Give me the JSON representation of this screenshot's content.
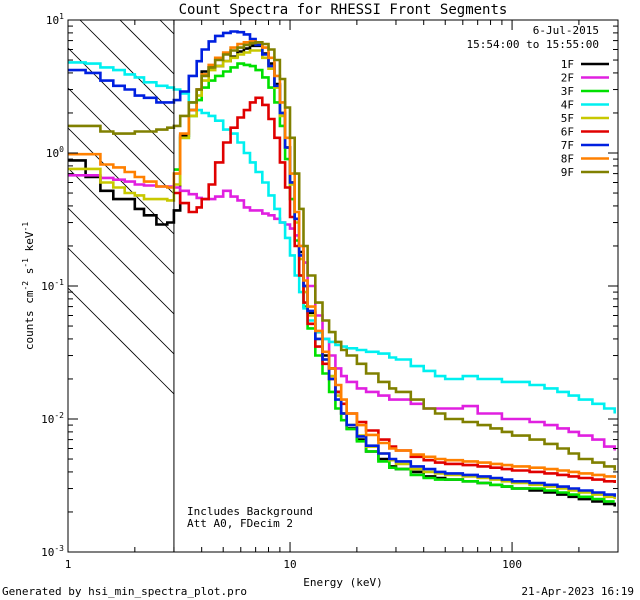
{
  "chart_data": {
    "type": "line",
    "step": true,
    "title": "Count Spectra for RHESSI Front Segments",
    "xlabel": "Energy (keV)",
    "ylabel_parts": {
      "main": "counts cm",
      "e1": "-2",
      "s": " s",
      "e2": "-1",
      "kev": " keV",
      "e3": "-1"
    },
    "xscale": "log",
    "yscale": "log",
    "xlim": [
      1,
      300
    ],
    "ylim": [
      0.001,
      10
    ],
    "x_tick_labels": [
      {
        "value": 1,
        "label": "1"
      },
      {
        "value": 10,
        "label": "10"
      },
      {
        "value": 100,
        "label": "100"
      }
    ],
    "y_tick_labels": [
      {
        "value": 10,
        "base": "10",
        "exp": "1"
      },
      {
        "value": 1,
        "base": "10",
        "exp": "0"
      },
      {
        "value": 0.1,
        "base": "10",
        "exp": "-1"
      },
      {
        "value": 0.01,
        "base": "10",
        "exp": "-2"
      },
      {
        "value": 0.001,
        "base": "10",
        "exp": "-3"
      }
    ],
    "date": "6-Jul-2015",
    "time_range": "15:54:00 to 15:55:00",
    "annotations": [
      "Includes Background",
      "Att A0, FDecim 2"
    ],
    "hatched_region_kev": [
      1,
      3
    ],
    "series": [
      {
        "name": "1F",
        "color": "#000000",
        "x": [
          1.0,
          1.2,
          1.4,
          1.6,
          1.8,
          2.0,
          2.2,
          2.5,
          2.8,
          3.0,
          3.2,
          3.5,
          3.8,
          4.0,
          4.3,
          4.6,
          5.0,
          5.4,
          5.8,
          6.2,
          6.6,
          7.0,
          7.5,
          8.0,
          8.5,
          9.0,
          9.5,
          10,
          10.5,
          11,
          11.5,
          12,
          13,
          14,
          15,
          16,
          17,
          18,
          20,
          22,
          25,
          28,
          30,
          35,
          40,
          45,
          50,
          60,
          70,
          80,
          90,
          100,
          120,
          140,
          160,
          180,
          200,
          230,
          260,
          290
        ],
        "y": [
          0.88,
          0.66,
          0.52,
          0.45,
          0.45,
          0.38,
          0.34,
          0.29,
          0.3,
          0.37,
          1.35,
          2.1,
          3.0,
          4.1,
          4.4,
          4.5,
          4.9,
          5.3,
          5.8,
          6.1,
          6.4,
          6.4,
          5.6,
          4.7,
          3.3,
          2.0,
          1.1,
          0.6,
          0.32,
          0.18,
          0.1,
          0.063,
          0.045,
          0.03,
          0.024,
          0.016,
          0.011,
          0.0085,
          0.007,
          0.0057,
          0.005,
          0.0044,
          0.0042,
          0.004,
          0.0037,
          0.0036,
          0.0035,
          0.0034,
          0.0033,
          0.0032,
          0.0031,
          0.003,
          0.0029,
          0.0028,
          0.0027,
          0.0026,
          0.0025,
          0.0024,
          0.0023,
          0.0022
        ]
      },
      {
        "name": "2F",
        "color": "#e020e0",
        "x": [
          1.0,
          1.2,
          1.4,
          1.6,
          1.8,
          2.0,
          2.2,
          2.5,
          2.8,
          3.0,
          3.2,
          3.5,
          3.8,
          4.0,
          4.3,
          4.6,
          5.0,
          5.4,
          5.8,
          6.2,
          6.6,
          7.0,
          7.5,
          8.0,
          8.5,
          9.0,
          9.5,
          10,
          10.5,
          11,
          11.5,
          12,
          13,
          14,
          15,
          16,
          17,
          18,
          20,
          22,
          25,
          28,
          30,
          35,
          40,
          45,
          50,
          60,
          70,
          80,
          90,
          100,
          120,
          140,
          160,
          180,
          200,
          230,
          260,
          290
        ],
        "y": [
          0.68,
          0.68,
          0.65,
          0.63,
          0.61,
          0.58,
          0.57,
          0.56,
          0.56,
          0.55,
          0.52,
          0.49,
          0.46,
          0.45,
          0.45,
          0.47,
          0.52,
          0.47,
          0.44,
          0.39,
          0.37,
          0.37,
          0.35,
          0.34,
          0.32,
          0.3,
          0.29,
          0.27,
          0.24,
          0.2,
          0.15,
          0.1,
          0.06,
          0.04,
          0.03,
          0.024,
          0.021,
          0.019,
          0.017,
          0.016,
          0.015,
          0.014,
          0.014,
          0.013,
          0.012,
          0.012,
          0.012,
          0.0125,
          0.011,
          0.011,
          0.01,
          0.01,
          0.0095,
          0.009,
          0.0085,
          0.008,
          0.0075,
          0.007,
          0.0062,
          0.0058
        ]
      },
      {
        "name": "3F",
        "color": "#00e000",
        "x": [
          3.0,
          3.2,
          3.5,
          3.8,
          4.0,
          4.3,
          4.6,
          5.0,
          5.4,
          5.8,
          6.2,
          6.6,
          7.0,
          7.5,
          8.0,
          8.5,
          9.0,
          9.5,
          10,
          10.5,
          11,
          11.5,
          12,
          13,
          14,
          15,
          16,
          17,
          18,
          20,
          22,
          25,
          28,
          30,
          35,
          40,
          45,
          50,
          60,
          70,
          80,
          90,
          100,
          120,
          140,
          160,
          180,
          200,
          230,
          260,
          290
        ],
        "y": [
          0.75,
          1.3,
          1.9,
          2.5,
          3.1,
          3.5,
          3.8,
          4.1,
          4.4,
          4.7,
          4.6,
          4.5,
          4.2,
          3.7,
          3.1,
          2.4,
          1.6,
          0.9,
          0.45,
          0.22,
          0.12,
          0.07,
          0.048,
          0.03,
          0.022,
          0.016,
          0.012,
          0.0098,
          0.0084,
          0.0068,
          0.0057,
          0.0048,
          0.0043,
          0.0042,
          0.0038,
          0.0036,
          0.0035,
          0.0035,
          0.0034,
          0.0033,
          0.0032,
          0.0031,
          0.003,
          0.003,
          0.0029,
          0.0028,
          0.0027,
          0.0026,
          0.0025,
          0.0024,
          0.0024
        ]
      },
      {
        "name": "4F",
        "color": "#00f0f0",
        "x": [
          1.0,
          1.2,
          1.4,
          1.6,
          1.8,
          2.0,
          2.2,
          2.5,
          2.8,
          3.0,
          3.2,
          3.5,
          3.8,
          4.0,
          4.3,
          4.6,
          5.0,
          5.4,
          5.8,
          6.2,
          6.6,
          7.0,
          7.5,
          8.0,
          8.5,
          9.0,
          9.5,
          10,
          10.5,
          11,
          11.5,
          12,
          13,
          14,
          15,
          16,
          17,
          18,
          20,
          22,
          25,
          28,
          30,
          35,
          40,
          45,
          50,
          60,
          70,
          80,
          90,
          100,
          120,
          140,
          160,
          180,
          200,
          230,
          260,
          290
        ],
        "y": [
          4.8,
          4.7,
          4.4,
          4.2,
          3.9,
          3.7,
          3.4,
          3.2,
          3.1,
          3.0,
          2.8,
          2.4,
          2.1,
          2.0,
          1.9,
          1.75,
          1.5,
          1.4,
          1.2,
          1.0,
          0.85,
          0.72,
          0.6,
          0.48,
          0.38,
          0.3,
          0.23,
          0.17,
          0.12,
          0.09,
          0.068,
          0.055,
          0.045,
          0.04,
          0.038,
          0.036,
          0.035,
          0.034,
          0.033,
          0.032,
          0.031,
          0.029,
          0.028,
          0.025,
          0.023,
          0.021,
          0.02,
          0.021,
          0.02,
          0.02,
          0.019,
          0.019,
          0.018,
          0.017,
          0.016,
          0.015,
          0.014,
          0.013,
          0.012,
          0.011
        ]
      },
      {
        "name": "5F",
        "color": "#c8c800",
        "x": [
          1.0,
          1.2,
          1.4,
          1.6,
          1.8,
          2.0,
          2.2,
          2.5,
          2.8,
          3.0,
          3.2,
          3.5,
          3.8,
          4.0,
          4.3,
          4.6,
          5.0,
          5.4,
          5.8,
          6.2,
          6.6,
          7.0,
          7.5,
          8.0,
          8.5,
          9.0,
          9.5,
          10,
          10.5,
          11,
          11.5,
          12,
          13,
          14,
          15,
          16,
          17,
          18,
          20,
          22,
          25,
          28,
          30,
          35,
          40,
          45,
          50,
          60,
          70,
          80,
          90,
          100,
          120,
          140,
          160,
          180,
          200,
          230,
          260,
          290
        ],
        "y": [
          0.76,
          0.76,
          0.6,
          0.55,
          0.5,
          0.48,
          0.45,
          0.45,
          0.44,
          0.58,
          1.3,
          1.9,
          2.7,
          3.5,
          4.2,
          4.5,
          4.9,
          5.2,
          5.5,
          5.7,
          5.9,
          5.9,
          5.2,
          4.3,
          3.1,
          1.9,
          1.1,
          0.58,
          0.3,
          0.16,
          0.09,
          0.06,
          0.04,
          0.028,
          0.021,
          0.015,
          0.011,
          0.009,
          0.0075,
          0.0062,
          0.0055,
          0.0049,
          0.0046,
          0.0042,
          0.004,
          0.0039,
          0.0038,
          0.0037,
          0.0036,
          0.0035,
          0.0034,
          0.0033,
          0.0032,
          0.0031,
          0.003,
          0.0029,
          0.0028,
          0.0027,
          0.0026,
          0.0025
        ]
      },
      {
        "name": "6F",
        "color": "#e00000",
        "x": [
          3.0,
          3.2,
          3.5,
          3.8,
          4.0,
          4.3,
          4.6,
          5.0,
          5.4,
          5.8,
          6.2,
          6.6,
          7.0,
          7.5,
          8.0,
          8.5,
          9.0,
          9.5,
          10,
          10.5,
          11,
          11.5,
          12,
          13,
          14,
          15,
          16,
          17,
          18,
          20,
          22,
          25,
          28,
          30,
          35,
          40,
          45,
          50,
          60,
          70,
          80,
          90,
          100,
          120,
          140,
          160,
          180,
          200,
          230,
          260,
          290
        ],
        "y": [
          0.5,
          0.42,
          0.36,
          0.39,
          0.45,
          0.58,
          0.85,
          1.2,
          1.55,
          1.85,
          2.1,
          2.4,
          2.6,
          2.3,
          1.8,
          1.3,
          0.85,
          0.55,
          0.33,
          0.2,
          0.12,
          0.075,
          0.052,
          0.035,
          0.026,
          0.02,
          0.016,
          0.013,
          0.011,
          0.0095,
          0.0082,
          0.007,
          0.0062,
          0.0058,
          0.0052,
          0.0049,
          0.0047,
          0.0046,
          0.0045,
          0.0044,
          0.0043,
          0.0042,
          0.0041,
          0.004,
          0.0039,
          0.0038,
          0.0037,
          0.0036,
          0.0035,
          0.0034,
          0.0033
        ]
      },
      {
        "name": "7F",
        "color": "#0020e0",
        "x": [
          1.0,
          1.2,
          1.4,
          1.6,
          1.8,
          2.0,
          2.2,
          2.5,
          2.8,
          3.0,
          3.2,
          3.5,
          3.8,
          4.0,
          4.3,
          4.6,
          5.0,
          5.4,
          5.8,
          6.2,
          6.6,
          7.0,
          7.5,
          8.0,
          8.5,
          9.0,
          9.5,
          10,
          10.5,
          11,
          11.5,
          12,
          13,
          14,
          15,
          16,
          17,
          18,
          20,
          22,
          25,
          28,
          30,
          35,
          40,
          45,
          50,
          60,
          70,
          80,
          90,
          100,
          120,
          140,
          160,
          180,
          200,
          230,
          260,
          290
        ],
        "y": [
          4.2,
          4.0,
          3.5,
          3.2,
          3.0,
          2.7,
          2.6,
          2.4,
          2.4,
          2.5,
          2.9,
          3.8,
          4.9,
          6.0,
          6.9,
          7.6,
          8.0,
          8.2,
          8.1,
          7.8,
          7.2,
          6.5,
          5.5,
          4.5,
          3.2,
          2.0,
          1.1,
          0.6,
          0.32,
          0.17,
          0.1,
          0.065,
          0.04,
          0.028,
          0.02,
          0.014,
          0.011,
          0.009,
          0.0074,
          0.0063,
          0.0055,
          0.005,
          0.0048,
          0.0044,
          0.0042,
          0.004,
          0.0039,
          0.0038,
          0.0037,
          0.0036,
          0.0035,
          0.0034,
          0.0033,
          0.0032,
          0.0031,
          0.003,
          0.0029,
          0.0028,
          0.0027,
          0.0026
        ]
      },
      {
        "name": "8F",
        "color": "#ff8000",
        "x": [
          1.0,
          1.2,
          1.4,
          1.6,
          1.8,
          2.0,
          2.2,
          2.5,
          2.8,
          3.0,
          3.2,
          3.5,
          3.8,
          4.0,
          4.3,
          4.6,
          5.0,
          5.4,
          5.8,
          6.2,
          6.6,
          7.0,
          7.5,
          8.0,
          8.5,
          9.0,
          9.5,
          10,
          10.5,
          11,
          11.5,
          12,
          13,
          14,
          15,
          16,
          17,
          18,
          20,
          22,
          25,
          28,
          30,
          35,
          40,
          45,
          50,
          60,
          70,
          80,
          90,
          100,
          120,
          140,
          160,
          180,
          200,
          230,
          260,
          290
        ],
        "y": [
          0.98,
          0.98,
          0.82,
          0.78,
          0.72,
          0.66,
          0.61,
          0.56,
          0.55,
          0.7,
          1.4,
          2.1,
          3.0,
          3.9,
          4.6,
          5.2,
          5.7,
          6.2,
          6.6,
          6.8,
          6.9,
          6.8,
          6.2,
          5.2,
          3.8,
          2.4,
          1.3,
          0.7,
          0.36,
          0.2,
          0.11,
          0.07,
          0.046,
          0.032,
          0.024,
          0.018,
          0.014,
          0.011,
          0.009,
          0.0076,
          0.0066,
          0.006,
          0.0058,
          0.0054,
          0.0052,
          0.005,
          0.0049,
          0.0048,
          0.0047,
          0.0046,
          0.0045,
          0.0044,
          0.0043,
          0.0042,
          0.0041,
          0.004,
          0.0039,
          0.0038,
          0.0037,
          0.0036
        ]
      },
      {
        "name": "9F",
        "color": "#808000",
        "x": [
          1.0,
          1.2,
          1.4,
          1.6,
          1.8,
          2.0,
          2.2,
          2.5,
          2.8,
          3.0,
          3.2,
          3.5,
          3.8,
          4.0,
          4.3,
          4.6,
          5.0,
          5.4,
          5.8,
          6.2,
          6.6,
          7.0,
          7.5,
          8.0,
          8.5,
          9.0,
          9.5,
          10,
          10.5,
          11,
          11.5,
          12,
          13,
          14,
          15,
          16,
          17,
          18,
          20,
          22,
          25,
          28,
          30,
          35,
          40,
          45,
          50,
          60,
          70,
          80,
          90,
          100,
          120,
          140,
          160,
          180,
          200,
          230,
          260,
          290
        ],
        "y": [
          1.6,
          1.6,
          1.45,
          1.4,
          1.4,
          1.45,
          1.45,
          1.5,
          1.55,
          1.6,
          1.9,
          2.4,
          3.0,
          3.8,
          4.4,
          5.0,
          5.5,
          5.9,
          6.2,
          6.5,
          6.7,
          6.8,
          6.6,
          6.0,
          5.0,
          3.6,
          2.2,
          1.3,
          0.7,
          0.38,
          0.2,
          0.12,
          0.075,
          0.055,
          0.045,
          0.038,
          0.033,
          0.03,
          0.026,
          0.022,
          0.019,
          0.017,
          0.016,
          0.014,
          0.012,
          0.011,
          0.01,
          0.0095,
          0.009,
          0.0085,
          0.008,
          0.0075,
          0.007,
          0.0065,
          0.006,
          0.0055,
          0.005,
          0.0047,
          0.0044,
          0.0041
        ]
      }
    ]
  },
  "footer": {
    "generated_by": "Generated by hsi_min_spectra_plot.pro",
    "datetime": "21-Apr-2023 16:19"
  }
}
